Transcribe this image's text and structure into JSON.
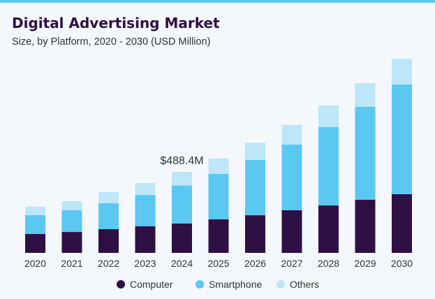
{
  "chart_data": {
    "type": "bar",
    "stacked": true,
    "title": "Digital Advertising Market",
    "subtitle": "Size, by Platform, 2020 - 2030 (USD Million)",
    "xlabel": "",
    "ylabel": "",
    "categories": [
      "2020",
      "2021",
      "2022",
      "2023",
      "2024",
      "2025",
      "2026",
      "2027",
      "2028",
      "2029",
      "2030"
    ],
    "series": [
      {
        "name": "Computer",
        "color": "#2e1045",
        "values": [
          114,
          126,
          143,
          160,
          177,
          202,
          227,
          257,
          286,
          320,
          354
        ]
      },
      {
        "name": "Smartphone",
        "color": "#5bc8f2",
        "values": [
          114,
          131,
          156,
          189,
          229,
          274,
          333,
          396,
          472,
          560,
          661
        ]
      },
      {
        "name": "Others",
        "color": "#bde6f8",
        "values": [
          51,
          55,
          67,
          72,
          82.4,
          93,
          105,
          118,
          131,
          143,
          156
        ]
      }
    ],
    "ylim": [
      0,
      1200
    ],
    "grid": false,
    "legend": "bottom",
    "annotations": [
      {
        "category": "2024",
        "text": "$488.4M"
      }
    ]
  },
  "colors": {
    "background": "#f4f8fc",
    "top_border": "#5bc8f2",
    "title": "#2d1046"
  }
}
